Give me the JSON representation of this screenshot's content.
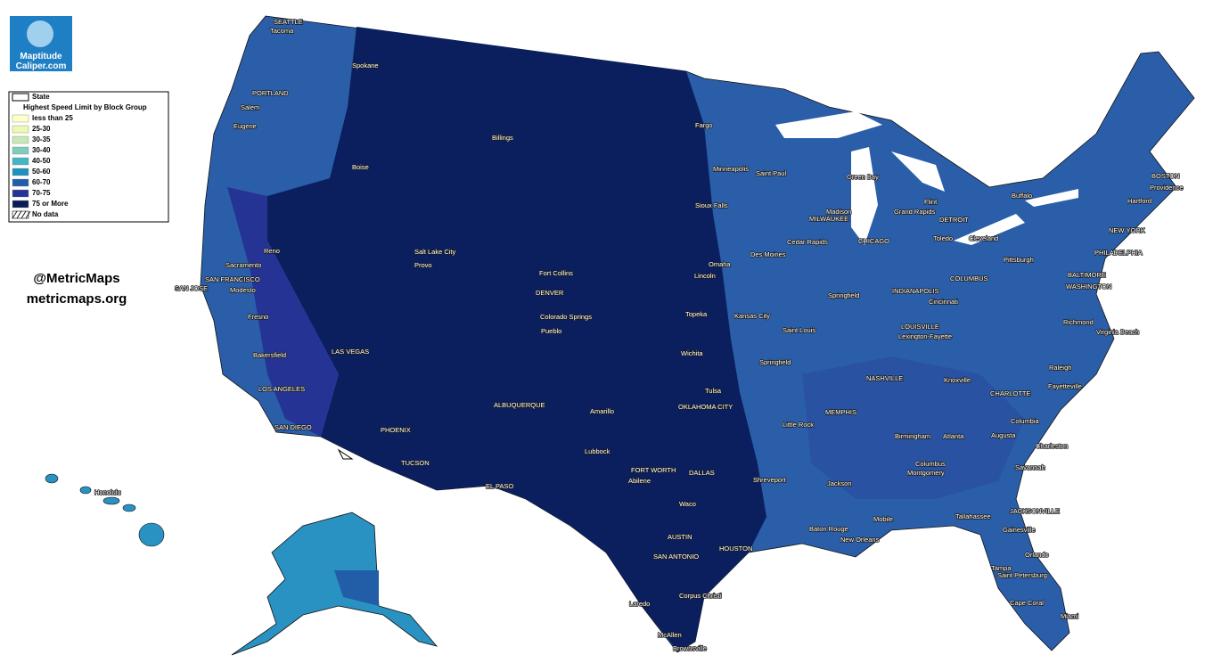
{
  "logo": {
    "name": "Maptitude",
    "site": "Caliper.com"
  },
  "handles": [
    "@MetricMaps",
    "metricmaps.org"
  ],
  "legend": {
    "state": "State",
    "title": "Highest Speed Limit by Block Group",
    "items": [
      {
        "label": "less than 25",
        "color": "#ffffcc"
      },
      {
        "label": "25-30",
        "color": "#edf8b1"
      },
      {
        "label": "30-35",
        "color": "#c7e9b4"
      },
      {
        "label": "30-40",
        "color": "#7fcdbb"
      },
      {
        "label": "40-50",
        "color": "#41b6c4"
      },
      {
        "label": "50-60",
        "color": "#1d91c0"
      },
      {
        "label": "60-70",
        "color": "#225ea8"
      },
      {
        "label": "70-75",
        "color": "#253494"
      },
      {
        "label": "75 or More",
        "color": "#081d58"
      }
    ],
    "no_data": "No data"
  },
  "cities": [
    "SEATTLE",
    "Tacoma",
    "Spokane",
    "PORTLAND",
    "Salem",
    "Eugene",
    "Boise",
    "Billings",
    "Fargo",
    "Minneapolis",
    "Saint Paul",
    "Green Bay",
    "Sioux Falls",
    "Madison",
    "MILWAUKEE",
    "Grand Rapids",
    "Flint",
    "DETROIT",
    "BOSTON",
    "Providence",
    "Hartford",
    "Buffalo",
    "CHICAGO",
    "Toledo",
    "Cleveland",
    "NEW YORK",
    "Pittsburgh",
    "PHILADELPHIA",
    "BALTIMORE",
    "WASHINGTON",
    "Reno",
    "Sacramento",
    "Salt Lake City",
    "Provo",
    "SAN FRANCISCO",
    "SAN JOSE",
    "Modesto",
    "Fort Collins",
    "DENVER",
    "Omaha",
    "Lincoln",
    "Des Moines",
    "Cedar Rapids",
    "Springfield",
    "INDIANAPOLIS",
    "COLUMBUS",
    "Cincinnati",
    "Fresno",
    "Colorado Springs",
    "Pueblo",
    "Kansas City",
    "Topeka",
    "Saint Louis",
    "LOUISVILLE",
    "Lexington-Fayette",
    "Richmond",
    "Virginia Beach",
    "LAS VEGAS",
    "Bakersfield",
    "Wichita",
    "Springfield",
    "NASHVILLE",
    "Knoxville",
    "Raleigh",
    "CHARLOTTE",
    "Fayetteville",
    "LOS ANGELES",
    "Tulsa",
    "OKLAHOMA CITY",
    "MEMPHIS",
    "ALBUQUERQUE",
    "Amarillo",
    "Columbia",
    "Little Rock",
    "SAN DIEGO",
    "PHOENIX",
    "Birmingham",
    "Atlanta",
    "Augusta",
    "Charleston",
    "Lubbock",
    "TUCSON",
    "FORT WORTH",
    "DALLAS",
    "Abilene",
    "Columbus",
    "Montgomery",
    "Savannah",
    "EL PASO",
    "Shreveport",
    "Jackson",
    "Honolulu",
    "Waco",
    "JACKSONVILLE",
    "Mobile",
    "Tallahassee",
    "Baton Rouge",
    "New Orleans",
    "Gainesville",
    "AUSTIN",
    "HOUSTON",
    "SAN ANTONIO",
    "Orlando",
    "Tampa",
    "Saint Petersburg",
    "Corpus Christi",
    "Laredo",
    "Cape Coral",
    "Miami",
    "McAllen",
    "Brownsville"
  ]
}
